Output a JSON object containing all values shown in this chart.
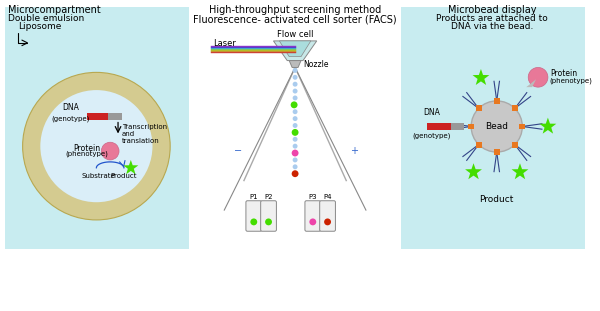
{
  "bg_color": "#ffffff",
  "left_panel_bg": "#c8ecf0",
  "right_panel_bg": "#c8ecf0",
  "liposome_outer_color": "#d4cb90",
  "liposome_inner_color": "#daeef8",
  "title_center": "High-throughput screening method",
  "subtitle_center": "Fluorescence- activated cell sorter (FACS)",
  "title_left": "Microcompartment",
  "subtitle_left1": "Double emulsion",
  "subtitle_left2": "Liposome",
  "title_right": "Microbead display",
  "subtitle_right1": "Products are attached to",
  "subtitle_right2": "DNA via the bead.",
  "bead_color": "#c8c8c8",
  "connector_color": "#e87820",
  "dna_red": "#cc2222",
  "dna_gray": "#999999",
  "protein_color": "#e87898",
  "product_green": "#44dd00",
  "arrow_color": "#333333",
  "tube_colors": [
    "#88cc44",
    "#44cc44",
    "#ee44aa",
    "#ee2200"
  ],
  "tube_labels": [
    "P1",
    "P2",
    "P3",
    "P4"
  ],
  "laser_colors": [
    "#cc3333",
    "#cc8833",
    "#bbbb22",
    "#88cc44",
    "#44bbcc",
    "#4444cc",
    "#8833cc"
  ],
  "flow_cell_color": "#aadddd",
  "nozzle_color": "#aaaaaa",
  "sorter_line_color": "#555555",
  "stream_dot_color": "#aaccee"
}
